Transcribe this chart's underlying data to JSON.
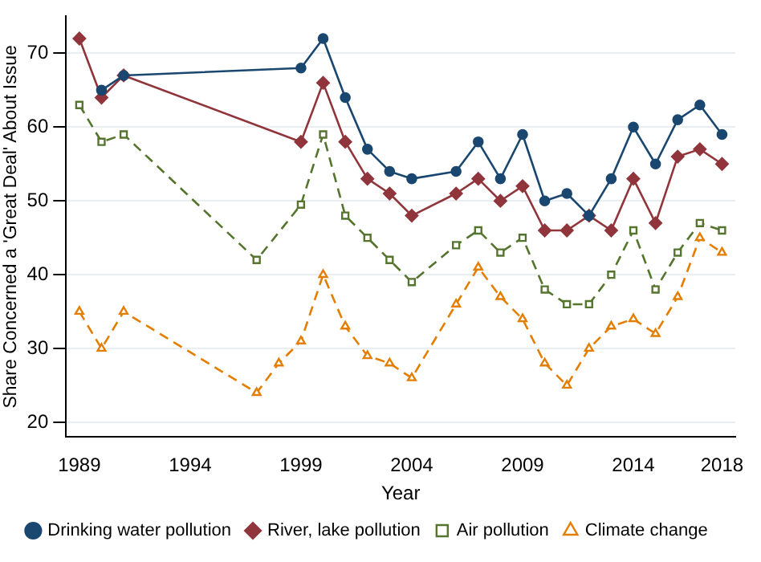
{
  "chart_data": {
    "type": "line",
    "xlabel": "Year",
    "ylabel": "Share Concerned a 'Great Deal' About Issue",
    "xlim": [
      1988.4,
      2018.6
    ],
    "xticks": [
      1989,
      1994,
      1999,
      2004,
      2009,
      2014,
      2018
    ],
    "ylim": [
      18,
      75
    ],
    "yticks": [
      20,
      30,
      40,
      50,
      60,
      70
    ],
    "grid": "y",
    "legend": "bottom",
    "series": [
      {
        "name": "Drinking water pollution",
        "color": "#1a476f",
        "marker": "circle",
        "line_style": "solid",
        "x": [
          1990,
          1991,
          1999,
          2000,
          2001,
          2002,
          2003,
          2004,
          2006,
          2007,
          2008,
          2009,
          2010,
          2011,
          2012,
          2013,
          2014,
          2015,
          2016,
          2017,
          2018
        ],
        "values": [
          65,
          67,
          68,
          72,
          64,
          57,
          54,
          53,
          54,
          58,
          53,
          59,
          50,
          51,
          48,
          53,
          60,
          55,
          61,
          63,
          59
        ]
      },
      {
        "name": "River, lake pollution",
        "color": "#90353b",
        "marker": "diamond",
        "line_style": "solid",
        "x": [
          1989,
          1990,
          1991,
          1999,
          2000,
          2001,
          2002,
          2003,
          2004,
          2006,
          2007,
          2008,
          2009,
          2010,
          2011,
          2012,
          2013,
          2014,
          2015,
          2016,
          2017,
          2018
        ],
        "values": [
          72,
          64,
          67,
          58,
          66,
          58,
          53,
          51,
          48,
          51,
          53,
          50,
          52,
          46,
          46,
          48,
          46,
          53,
          47,
          56,
          57,
          55
        ]
      },
      {
        "name": "Air pollution",
        "color": "#55752f",
        "marker": "square",
        "line_style": "dashed",
        "x": [
          1989,
          1990,
          1991,
          1997,
          1999,
          2000,
          2001,
          2002,
          2003,
          2004,
          2006,
          2007,
          2008,
          2009,
          2010,
          2011,
          2012,
          2013,
          2014,
          2015,
          2016,
          2017,
          2018
        ],
        "values": [
          63,
          58,
          59,
          42,
          49.5,
          59,
          48,
          45,
          42,
          39,
          44,
          46,
          43,
          45,
          38,
          36,
          36,
          40,
          46,
          38,
          43,
          47,
          46
        ]
      },
      {
        "name": "Climate change",
        "color": "#e37e00",
        "marker": "triangle",
        "line_style": "dashed",
        "x": [
          1989,
          1990,
          1991,
          1997,
          1998,
          1999,
          2000,
          2001,
          2002,
          2003,
          2004,
          2006,
          2007,
          2008,
          2009,
          2010,
          2011,
          2012,
          2013,
          2014,
          2015,
          2016,
          2017,
          2018
        ],
        "values": [
          35,
          30,
          35,
          24,
          28,
          31,
          40,
          33,
          29,
          28,
          26,
          36,
          41,
          37,
          34,
          28,
          25,
          30,
          33,
          34,
          32,
          37,
          45,
          43
        ]
      }
    ]
  }
}
